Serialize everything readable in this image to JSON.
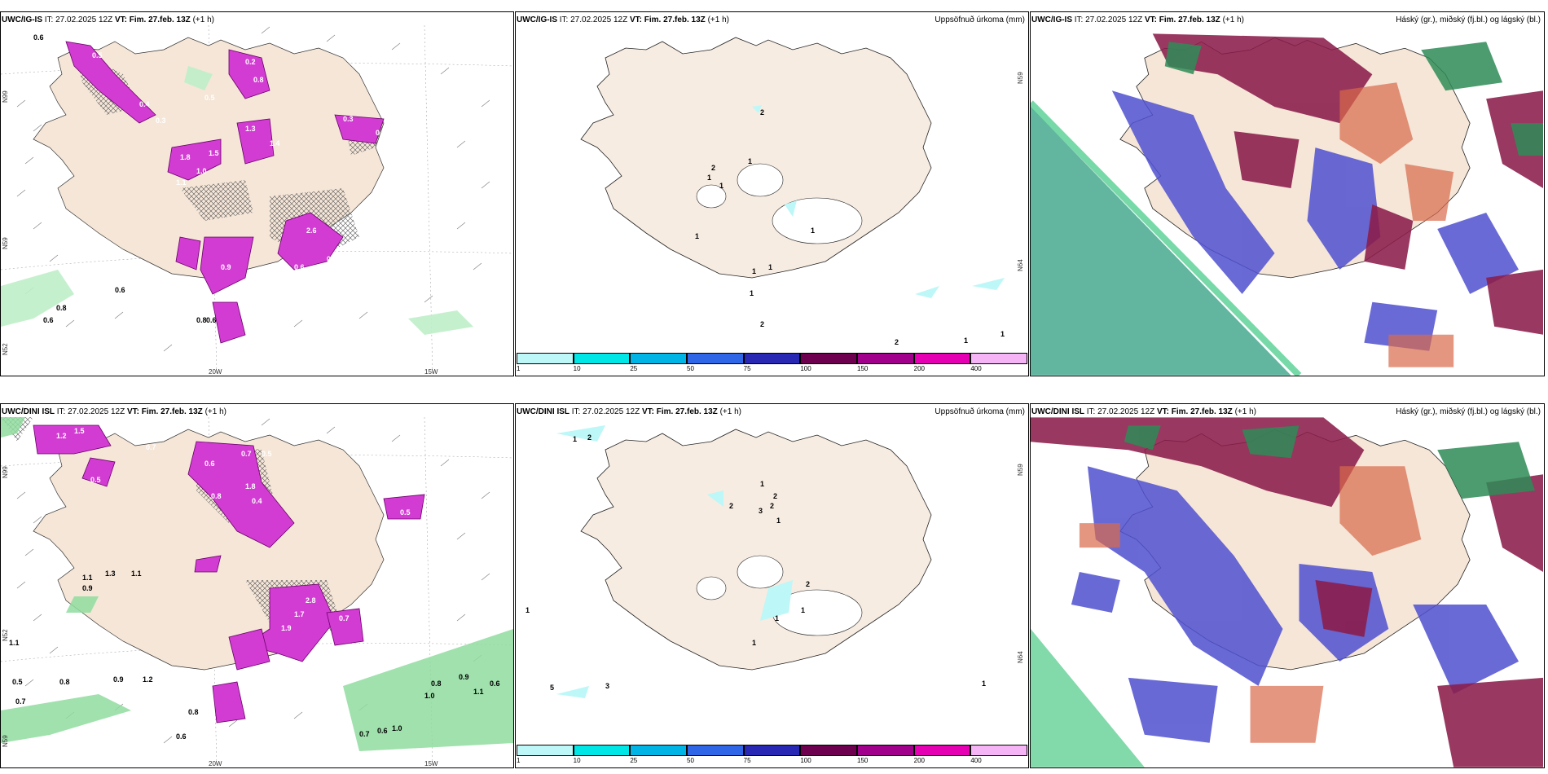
{
  "panels": {
    "top_left": {
      "title_model": "UWC/IG-IS",
      "it": "IT: 27.02.2025 12Z",
      "vt_label": "VT:",
      "vt": "Fim. 27.feb. 13Z",
      "step": "(+1 h)",
      "axis": {
        "lat1": "N99",
        "lat2": "N59",
        "lat3": "N52",
        "lon1": "20W",
        "lon2": "15W"
      },
      "labels": [
        "0.6",
        "0.7",
        "0.5",
        "0.4",
        "0.3",
        "0.2",
        "0.8",
        "1.8",
        "1.5",
        "1.0",
        "1.1",
        "1.3",
        "0.5",
        "2.6",
        "0.7",
        "0.6",
        "0.5",
        "0.9",
        "1.2",
        "0.8",
        "0.6",
        "0.8",
        "0.6",
        "0.6",
        "1.4",
        "0.5",
        "0.3"
      ]
    },
    "top_mid": {
      "title_model": "UWC/IG-IS",
      "it": "IT: 27.02.2025 12Z",
      "vt_label": "VT:",
      "vt": "Fim. 27.feb. 13Z",
      "step": "(+1 h)",
      "product": "Uppsöfnuð úrkoma (mm)",
      "axis": {
        "lat1": "N59",
        "lat2": "N64"
      },
      "labels": [
        "2",
        "2",
        "1",
        "1",
        "1",
        "1",
        "1",
        "1",
        "1",
        "1",
        "2",
        "2",
        "1",
        "1"
      ]
    },
    "top_right": {
      "title_model": "UWC/IG-IS",
      "it": "IT: 27.02.2025 12Z",
      "vt_label": "VT:",
      "vt": "Fim. 27.feb. 13Z",
      "step": "(+1 h)",
      "product": "Háský (gr.), miðský (fj.bl.) og lágský (bl.)"
    },
    "bot_left": {
      "title_model": "UWC/DINI ISL",
      "it": "IT: 27.02.2025 12Z",
      "vt_label": "VT:",
      "vt": "Fim. 27.feb. 13Z",
      "step": "(+1 h)",
      "axis": {
        "lat1": "N99",
        "lat2": "N52",
        "lat3": "N59",
        "lon1": "20W",
        "lon2": "15W"
      },
      "labels": [
        "1.2",
        "1.5",
        "0.7",
        "0.5",
        "0.8",
        "0.6",
        "1.8",
        "0.7",
        "0.5",
        "0.4",
        "2.8",
        "1.7",
        "1.9",
        "0.7",
        "0.5",
        "1.1",
        "1.3",
        "1.1",
        "0.9",
        "0.5",
        "0.8",
        "0.9",
        "1.2",
        "0.7",
        "0.8",
        "1.1",
        "0.6",
        "0.8",
        "1.0",
        "0.9",
        "0.6",
        "0.7",
        "0.6",
        "1.0",
        "1.1"
      ]
    },
    "bot_mid": {
      "title_model": "UWC/DINI ISL",
      "it": "IT: 27.02.2025 12Z",
      "vt_label": "VT:",
      "vt": "Fim. 27.feb. 13Z",
      "step": "(+1 h)",
      "product": "Uppsöfnuð úrkoma (mm)",
      "axis": {
        "lat1": "N59",
        "lat2": "N64"
      },
      "labels": [
        "1",
        "2",
        "1",
        "2",
        "2",
        "3",
        "1",
        "2",
        "2",
        "1",
        "1",
        "1",
        "5",
        "3",
        "1",
        "1"
      ]
    },
    "bot_right": {
      "title_model": "UWC/DINI ISL",
      "it": "IT: 27.02.2025 12Z",
      "vt_label": "VT:",
      "vt": "Fim. 27.feb. 13Z",
      "step": "(+1 h)",
      "product": "Háský (gr.), miðský (fj.bl.) og lágský (bl.)"
    }
  },
  "colorbar": {
    "ticks": [
      "1",
      "10",
      "25",
      "50",
      "75",
      "100",
      "150",
      "200",
      "400"
    ],
    "colors": [
      "#bdf7f7",
      "#00e6e6",
      "#00b4e6",
      "#2f66e8",
      "#2828b4",
      "#6e0050",
      "#a0008c",
      "#e600b4",
      "#f5b4f5"
    ]
  },
  "colors": {
    "land": "#f5e6d8",
    "precip": "#d23cd2",
    "cloud_high": "#2fbf71",
    "cloud_mid": "#8b1c4a",
    "cloud_low": "#5050d0",
    "light_precip": "#bdf7f7"
  }
}
